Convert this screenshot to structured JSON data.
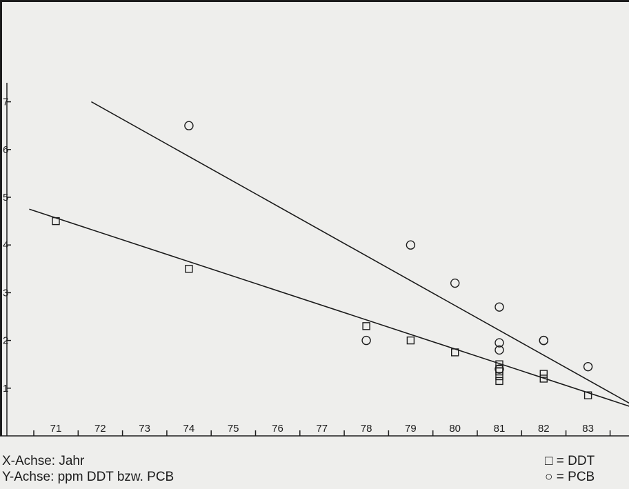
{
  "chart_data": {
    "type": "scatter",
    "xlabel": "X-Achse: Jahr",
    "ylabel": "Y-Achse: ppm DDT bzw. PCB",
    "xlim": [
      70.4,
      84.0
    ],
    "ylim": [
      0,
      8.2
    ],
    "x_ticks": [
      71,
      72,
      73,
      74,
      75,
      76,
      77,
      78,
      79,
      80,
      81,
      82,
      83
    ],
    "y_ticks": [
      1,
      2,
      3,
      4,
      5,
      6,
      7
    ],
    "legend": {
      "position": "bottom-right"
    },
    "series": [
      {
        "name": "DDT",
        "marker": "square",
        "points": [
          [
            71,
            4.5
          ],
          [
            74,
            3.5
          ],
          [
            78,
            2.3
          ],
          [
            79,
            2.0
          ],
          [
            80,
            1.75
          ],
          [
            81,
            1.5
          ],
          [
            81,
            1.4
          ],
          [
            81,
            1.35
          ],
          [
            81,
            1.25
          ],
          [
            81,
            1.15
          ],
          [
            82,
            1.3
          ],
          [
            82,
            1.2
          ],
          [
            83,
            0.85
          ]
        ],
        "trendline": [
          [
            70.4,
            4.75
          ],
          [
            84.0,
            0.6
          ]
        ]
      },
      {
        "name": "PCB",
        "marker": "circle",
        "points": [
          [
            74,
            6.5
          ],
          [
            78,
            2.0
          ],
          [
            79,
            4.0
          ],
          [
            80,
            3.2
          ],
          [
            81,
            2.7
          ],
          [
            81,
            1.95
          ],
          [
            81,
            1.8
          ],
          [
            81,
            1.4
          ],
          [
            82,
            2.0
          ],
          [
            82,
            2.0
          ],
          [
            83,
            1.45
          ]
        ],
        "trendline": [
          [
            71.8,
            7.0
          ],
          [
            84.0,
            0.65
          ]
        ]
      }
    ]
  },
  "captions": {
    "x_axis": "X-Achse: Jahr",
    "y_axis": "Y-Achse: ppm DDT bzw. PCB"
  },
  "legend": {
    "ddt_symbol": "□",
    "ddt_label": "= DDT",
    "pcb_symbol": "○",
    "pcb_label": "= PCB"
  },
  "colors": {
    "ink": "#1c1c1c",
    "paper": "#eeeeec"
  }
}
